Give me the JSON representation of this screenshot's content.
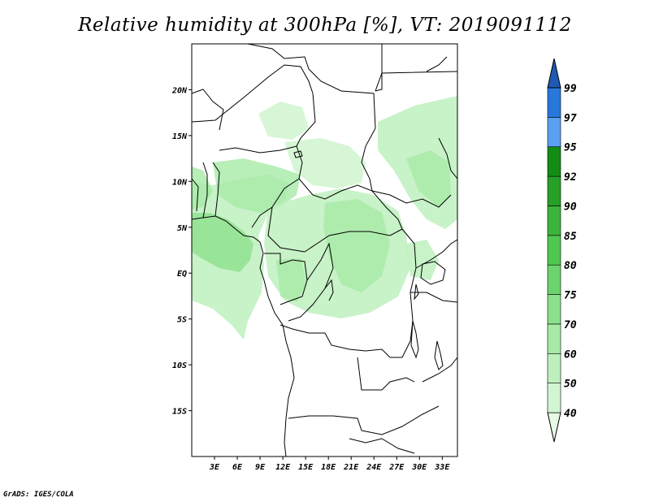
{
  "title": "Relative humidity at 300hPa [%], VT: 2019091112",
  "credit": "GrADS: IGES/COLA",
  "map": {
    "lon_range": [
      0,
      35
    ],
    "lat_range": [
      -20,
      25
    ],
    "lat_ticks": [
      {
        "value": 20,
        "label": "20N"
      },
      {
        "value": 15,
        "label": "15N"
      },
      {
        "value": 10,
        "label": "10N"
      },
      {
        "value": 5,
        "label": "5N"
      },
      {
        "value": 0,
        "label": "EQ"
      },
      {
        "value": -5,
        "label": "5S"
      },
      {
        "value": -10,
        "label": "10S"
      },
      {
        "value": -15,
        "label": "15S"
      }
    ],
    "lon_ticks": [
      {
        "value": 3,
        "label": "3E"
      },
      {
        "value": 6,
        "label": "6E"
      },
      {
        "value": 9,
        "label": "9E"
      },
      {
        "value": 12,
        "label": "12E"
      },
      {
        "value": 15,
        "label": "15E"
      },
      {
        "value": 18,
        "label": "18E"
      },
      {
        "value": 21,
        "label": "21E"
      },
      {
        "value": 24,
        "label": "24E"
      },
      {
        "value": 27,
        "label": "27E"
      },
      {
        "value": 30,
        "label": "30E"
      },
      {
        "value": 33,
        "label": "33E"
      }
    ]
  },
  "colorbar": {
    "levels": [
      "40",
      "50",
      "60",
      "70",
      "75",
      "80",
      "85",
      "90",
      "92",
      "95",
      "97",
      "99"
    ],
    "colors": [
      "#e6fae6",
      "#d2f5d2",
      "#bef0be",
      "#a6eaa6",
      "#8ce08c",
      "#6cd46c",
      "#50c850",
      "#3cb43c",
      "#26a026",
      "#148c14",
      "#5aa0f0",
      "#2878dc",
      "#1e5ab4"
    ]
  }
}
